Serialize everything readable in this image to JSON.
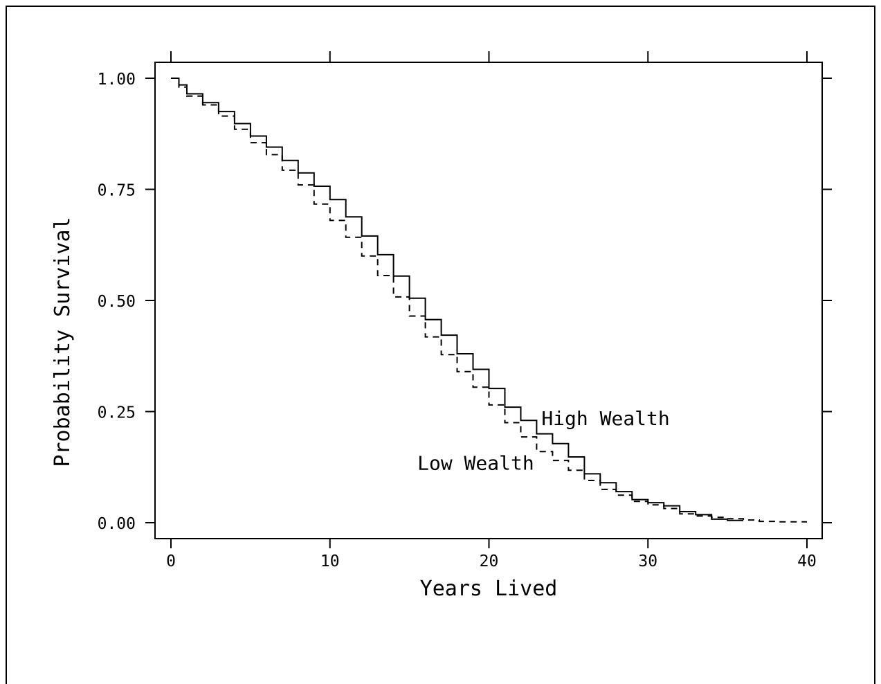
{
  "chart_data": {
    "type": "line",
    "step": true,
    "xlabel": "Years Lived",
    "ylabel": "Probability Survival",
    "xlim": [
      0,
      40
    ],
    "ylim": [
      0,
      1
    ],
    "x_ticks": [
      0,
      10,
      20,
      30,
      40
    ],
    "x_tick_labels": [
      "0",
      "10",
      "20",
      "30",
      "40"
    ],
    "y_ticks": [
      0,
      0.25,
      0.5,
      0.75,
      1
    ],
    "y_tick_labels": [
      "0.00",
      "0.25",
      "0.50",
      "0.75",
      "1.00"
    ],
    "grid": false,
    "series": [
      {
        "name": "High Wealth",
        "line_style": "solid",
        "x": [
          0,
          0.5,
          1,
          2,
          3,
          4,
          5,
          6,
          7,
          8,
          9,
          10,
          11,
          12,
          13,
          14,
          15,
          16,
          17,
          18,
          19,
          20,
          21,
          22,
          23,
          24,
          25,
          26,
          27,
          28,
          29,
          30,
          31,
          32,
          33,
          34,
          35,
          36
        ],
        "y": [
          1.0,
          0.985,
          0.965,
          0.945,
          0.925,
          0.898,
          0.87,
          0.845,
          0.815,
          0.787,
          0.757,
          0.727,
          0.688,
          0.645,
          0.603,
          0.555,
          0.505,
          0.457,
          0.422,
          0.38,
          0.345,
          0.302,
          0.26,
          0.23,
          0.2,
          0.178,
          0.148,
          0.11,
          0.09,
          0.07,
          0.052,
          0.045,
          0.038,
          0.025,
          0.018,
          0.008,
          0.005,
          0.005
        ]
      },
      {
        "name": "Low Wealth",
        "line_style": "dashed",
        "x": [
          0,
          0.5,
          1,
          2,
          3,
          4,
          5,
          6,
          7,
          8,
          9,
          10,
          11,
          12,
          13,
          14,
          15,
          16,
          17,
          18,
          19,
          20,
          21,
          22,
          23,
          24,
          25,
          26,
          27,
          28,
          29,
          30,
          31,
          32,
          33,
          34,
          35,
          36,
          37,
          38,
          39,
          40
        ],
        "y": [
          1.0,
          0.98,
          0.96,
          0.94,
          0.915,
          0.885,
          0.855,
          0.828,
          0.793,
          0.76,
          0.717,
          0.68,
          0.642,
          0.6,
          0.556,
          0.508,
          0.465,
          0.418,
          0.378,
          0.34,
          0.305,
          0.265,
          0.225,
          0.193,
          0.16,
          0.14,
          0.118,
          0.095,
          0.075,
          0.062,
          0.048,
          0.04,
          0.032,
          0.02,
          0.015,
          0.012,
          0.009,
          0.006,
          0.003,
          0.002,
          0.002,
          0.002
        ]
      }
    ],
    "annotations": [
      {
        "text": "High Wealth",
        "x": 23.3,
        "y": 0.235,
        "anchor": "start"
      },
      {
        "text": "Low Wealth",
        "x": 15.5,
        "y": 0.135,
        "anchor": "start"
      }
    ]
  }
}
